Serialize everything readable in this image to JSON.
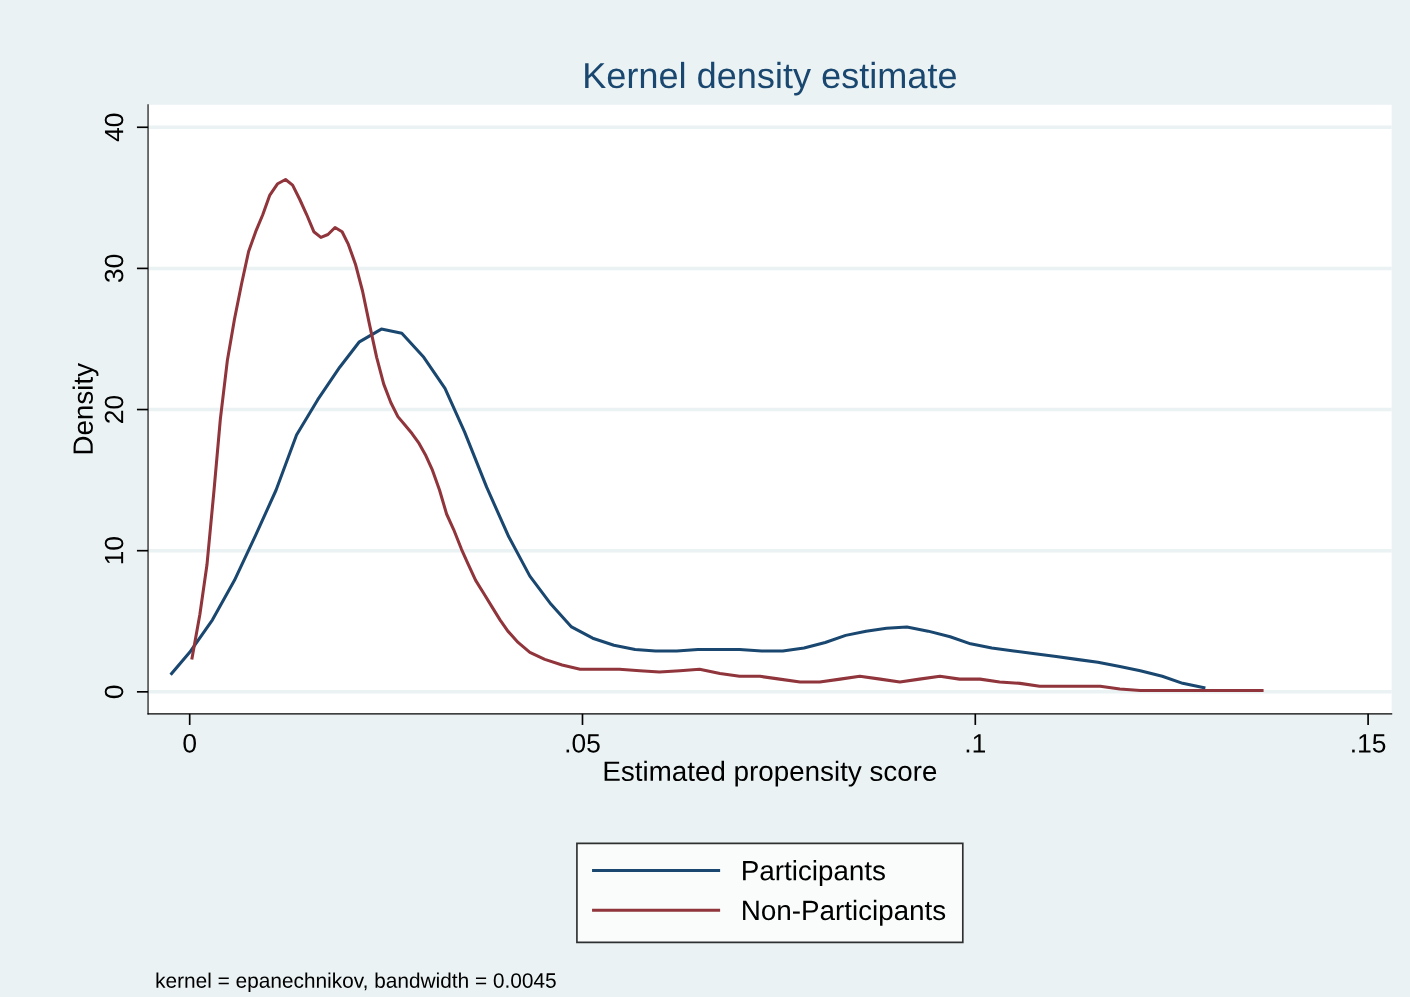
{
  "chart_data": {
    "type": "line",
    "title": "Kernel density estimate",
    "xlabel": "Estimated propensity score",
    "ylabel": "Density",
    "annotations": [
      "kernel = epanechnikov, bandwidth = 0.0045"
    ],
    "xlim": [
      -0.0053,
      0.153
    ],
    "ylim": [
      -1.56,
      41.6
    ],
    "xticks": [
      0,
      {
        "value": 0.05,
        "label": ".05"
      },
      {
        "value": 0.1,
        "label": ".1"
      },
      {
        "value": 0.15,
        "label": ".15"
      }
    ],
    "yticks": [
      0,
      10,
      20,
      30,
      40
    ],
    "grid": "y",
    "legend": "bottom",
    "marker": "none",
    "line_style": "solid",
    "series": [
      {
        "name": "Participants",
        "color": "#1a476f",
        "x": [
          -0.0023,
          0,
          0.0029,
          0.0057,
          0.0084,
          0.011,
          0.0136,
          0.0163,
          0.0191,
          0.0216,
          0.0244,
          0.027,
          0.0298,
          0.0325,
          0.035,
          0.0378,
          0.0406,
          0.0433,
          0.046,
          0.0486,
          0.0513,
          0.054,
          0.0567,
          0.0593,
          0.062,
          0.0647,
          0.0674,
          0.07,
          0.0728,
          0.0755,
          0.0782,
          0.0809,
          0.0835,
          0.0861,
          0.0887,
          0.0913,
          0.094,
          0.0968,
          0.0994,
          0.1021,
          0.1049,
          0.1076,
          0.1103,
          0.1129,
          0.1156,
          0.1184,
          0.121,
          0.1238,
          0.1264,
          0.1291
        ],
        "values": [
          1.3,
          2.8,
          5.1,
          7.9,
          11.1,
          14.3,
          18.2,
          20.7,
          23.0,
          24.8,
          25.7,
          25.4,
          23.7,
          21.5,
          18.4,
          14.5,
          11.0,
          8.2,
          6.2,
          4.6,
          3.8,
          3.3,
          3.0,
          2.9,
          2.9,
          3.0,
          3.0,
          3.0,
          2.9,
          2.9,
          3.1,
          3.5,
          4.0,
          4.3,
          4.5,
          4.6,
          4.3,
          3.9,
          3.4,
          3.1,
          2.9,
          2.7,
          2.5,
          2.3,
          2.1,
          1.8,
          1.5,
          1.1,
          0.6,
          0.3
        ]
      },
      {
        "name": "Non-Participants",
        "color": "#90353b",
        "x": [
          0.0003,
          0.0013,
          0.0022,
          0.0031,
          0.0039,
          0.0048,
          0.0057,
          0.0066,
          0.0075,
          0.0084,
          0.0093,
          0.0102,
          0.0112,
          0.0122,
          0.0131,
          0.014,
          0.0149,
          0.0158,
          0.0167,
          0.0176,
          0.0185,
          0.0194,
          0.0202,
          0.0211,
          0.022,
          0.0229,
          0.0238,
          0.0247,
          0.0256,
          0.0265,
          0.0274,
          0.0283,
          0.0292,
          0.03,
          0.0309,
          0.0318,
          0.0327,
          0.0336,
          0.0346,
          0.0354,
          0.0364,
          0.0374,
          0.0385,
          0.0395,
          0.0405,
          0.0418,
          0.0433,
          0.0452,
          0.0474,
          0.0497,
          0.0522,
          0.0547,
          0.0573,
          0.0598,
          0.0624,
          0.0649,
          0.0675,
          0.07,
          0.0726,
          0.0751,
          0.0777,
          0.0802,
          0.0828,
          0.0853,
          0.0879,
          0.0904,
          0.0929,
          0.0955,
          0.098,
          0.1006,
          0.1031,
          0.1057,
          0.1082,
          0.1108,
          0.1133,
          0.1159,
          0.1184,
          0.121,
          0.1235,
          0.1261,
          0.1286,
          0.1311,
          0.1365
        ],
        "values": [
          2.4,
          5.5,
          9.0,
          14.3,
          19.3,
          23.5,
          26.4,
          28.9,
          31.2,
          32.6,
          33.8,
          35.2,
          36.0,
          36.3,
          35.9,
          34.9,
          33.8,
          32.6,
          32.2,
          32.4,
          32.9,
          32.6,
          31.7,
          30.3,
          28.4,
          26.0,
          23.7,
          21.8,
          20.5,
          19.5,
          18.9,
          18.3,
          17.6,
          16.8,
          15.7,
          14.3,
          12.6,
          11.5,
          10.1,
          9.1,
          7.9,
          7.0,
          6.0,
          5.1,
          4.3,
          3.5,
          2.8,
          2.3,
          1.9,
          1.6,
          1.6,
          1.6,
          1.5,
          1.4,
          1.5,
          1.6,
          1.3,
          1.1,
          1.1,
          0.9,
          0.7,
          0.7,
          0.9,
          1.1,
          0.9,
          0.7,
          0.9,
          1.1,
          0.9,
          0.9,
          0.7,
          0.6,
          0.4,
          0.4,
          0.4,
          0.4,
          0.2,
          0.1,
          0.1,
          0.1,
          0.1,
          0.1,
          0.1
        ]
      }
    ]
  }
}
